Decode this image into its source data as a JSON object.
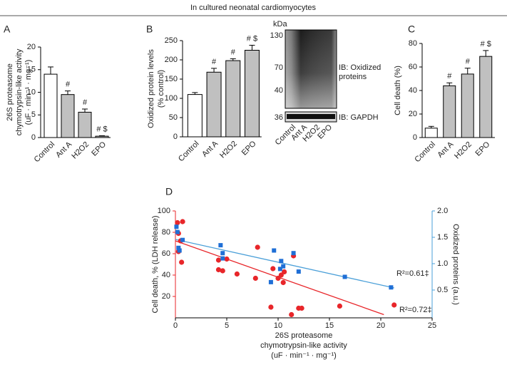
{
  "header": {
    "title": "In cultured neonatal cardiomyocytes"
  },
  "chart_data": [
    {
      "type": "bar",
      "panel": "A",
      "y_label": [
        "26S proteasome",
        "chymotrypsin-like activity",
        "(uF · min⁻¹ · mg⁻¹)"
      ],
      "categories": [
        "Control",
        "Ant A",
        "H2O2",
        "EPO"
      ],
      "values": [
        14,
        9.5,
        5.6,
        0.3
      ],
      "errors": [
        1.6,
        0.8,
        0.7,
        0.1
      ],
      "annotations": [
        null,
        "#",
        "#",
        "# $"
      ],
      "colors": [
        "#ffffff",
        "#c0c0c0",
        "#c0c0c0",
        "#c0c0c0"
      ],
      "ylim": [
        0,
        20
      ],
      "yticks": [
        0,
        5,
        10,
        15,
        20
      ]
    },
    {
      "type": "bar",
      "panel": "B",
      "y_label": [
        "Oxidized protein levels",
        "(% control)"
      ],
      "categories": [
        "Control",
        "Ant A",
        "H2O2",
        "EPO"
      ],
      "values": [
        110,
        168,
        198,
        225
      ],
      "errors": [
        5,
        10,
        5,
        13
      ],
      "annotations": [
        null,
        "#",
        "#",
        "# $"
      ],
      "colors": [
        "#ffffff",
        "#c0c0c0",
        "#c0c0c0",
        "#c0c0c0"
      ],
      "ylim": [
        0,
        250
      ],
      "yticks": [
        0,
        50,
        100,
        150,
        200,
        250
      ]
    },
    {
      "type": "bar",
      "panel": "C",
      "y_label": [
        "Cell death (%)"
      ],
      "categories": [
        "Control",
        "Ant A",
        "H2O2",
        "EPO"
      ],
      "values": [
        8,
        44,
        54,
        69
      ],
      "errors": [
        1.5,
        2.5,
        5,
        5
      ],
      "annotations": [
        null,
        "#",
        "#",
        "# $"
      ],
      "colors": [
        "#ffffff",
        "#c0c0c0",
        "#c0c0c0",
        "#c0c0c0"
      ],
      "ylim": [
        0,
        80
      ],
      "yticks": [
        0,
        20,
        40,
        60,
        80
      ]
    },
    {
      "type": "scatter",
      "panel": "D",
      "x_label": [
        "26S proteasome",
        "chymotrypsin-like activity",
        "(uF · min⁻¹ · mg⁻¹)"
      ],
      "y_label": "Cell death, % (LDH release)",
      "y2_label": "Oxidized proteins (a.u.)",
      "xlim": [
        0,
        25
      ],
      "xticks": [
        0,
        5,
        10,
        15,
        20,
        25
      ],
      "ylim": [
        0,
        100
      ],
      "yticks": [
        20,
        40,
        60,
        80,
        100
      ],
      "y2lim": [
        0,
        2
      ],
      "y2ticks": [
        0.5,
        {
          "value": 1,
          "label": "1.0"
        },
        1.5,
        {
          "value": 2,
          "label": "2.0"
        }
      ],
      "series": [
        {
          "color": "#e8262a",
          "marker": "circle",
          "x": [
            0.2,
            0.7,
            0.3,
            0.5,
            0.3,
            0.6,
            4.2,
            4.6,
            4.2,
            6,
            5,
            8,
            7.8,
            9.5,
            10,
            10.3,
            10.6,
            11.5,
            9.3,
            11.3,
            12,
            12.3,
            16,
            21.3,
            10.5
          ],
          "values": [
            89,
            90,
            79,
            72,
            62,
            52,
            54,
            44,
            45,
            41,
            55,
            66,
            37,
            46,
            37,
            40,
            43,
            58,
            10,
            3,
            9,
            9,
            11,
            12,
            33
          ]
        },
        {
          "color": "#1f6fd6",
          "marker": "square",
          "axis": "y2",
          "x": [
            0.1,
            0.2,
            0.7,
            0.3,
            0.4,
            4.4,
            4.6,
            4.6,
            9.6,
            10.3,
            10.5,
            10.2,
            9.3,
            11.5,
            12,
            16.5,
            21
          ],
          "values": [
            1.7,
            1.6,
            1.45,
            1.3,
            1.25,
            1.35,
            1.2,
            1.1,
            1.25,
            1.05,
            0.95,
            0.9,
            0.65,
            1.2,
            0.85,
            0.75,
            0.55
          ]
        }
      ],
      "fits": [
        {
          "color": "#e8262a",
          "x": [
            0,
            20.3
          ],
          "values": [
            72,
            3
          ]
        },
        {
          "color": "#4a9fd8",
          "axis": "y2",
          "x": [
            0,
            21.3
          ],
          "values": [
            1.46,
            0.54
          ]
        }
      ],
      "annotations": [
        "R²=0.72‡",
        "R²=0.61‡"
      ]
    }
  ],
  "blot": {
    "unit": "kDa",
    "markers": [
      "130",
      "70",
      "40",
      "36"
    ],
    "labels": [
      "IB: Oxidized",
      "proteins",
      "IB: GAPDH"
    ],
    "lanes": [
      "Control",
      "Ant A",
      "H2O2",
      "EPO"
    ]
  }
}
